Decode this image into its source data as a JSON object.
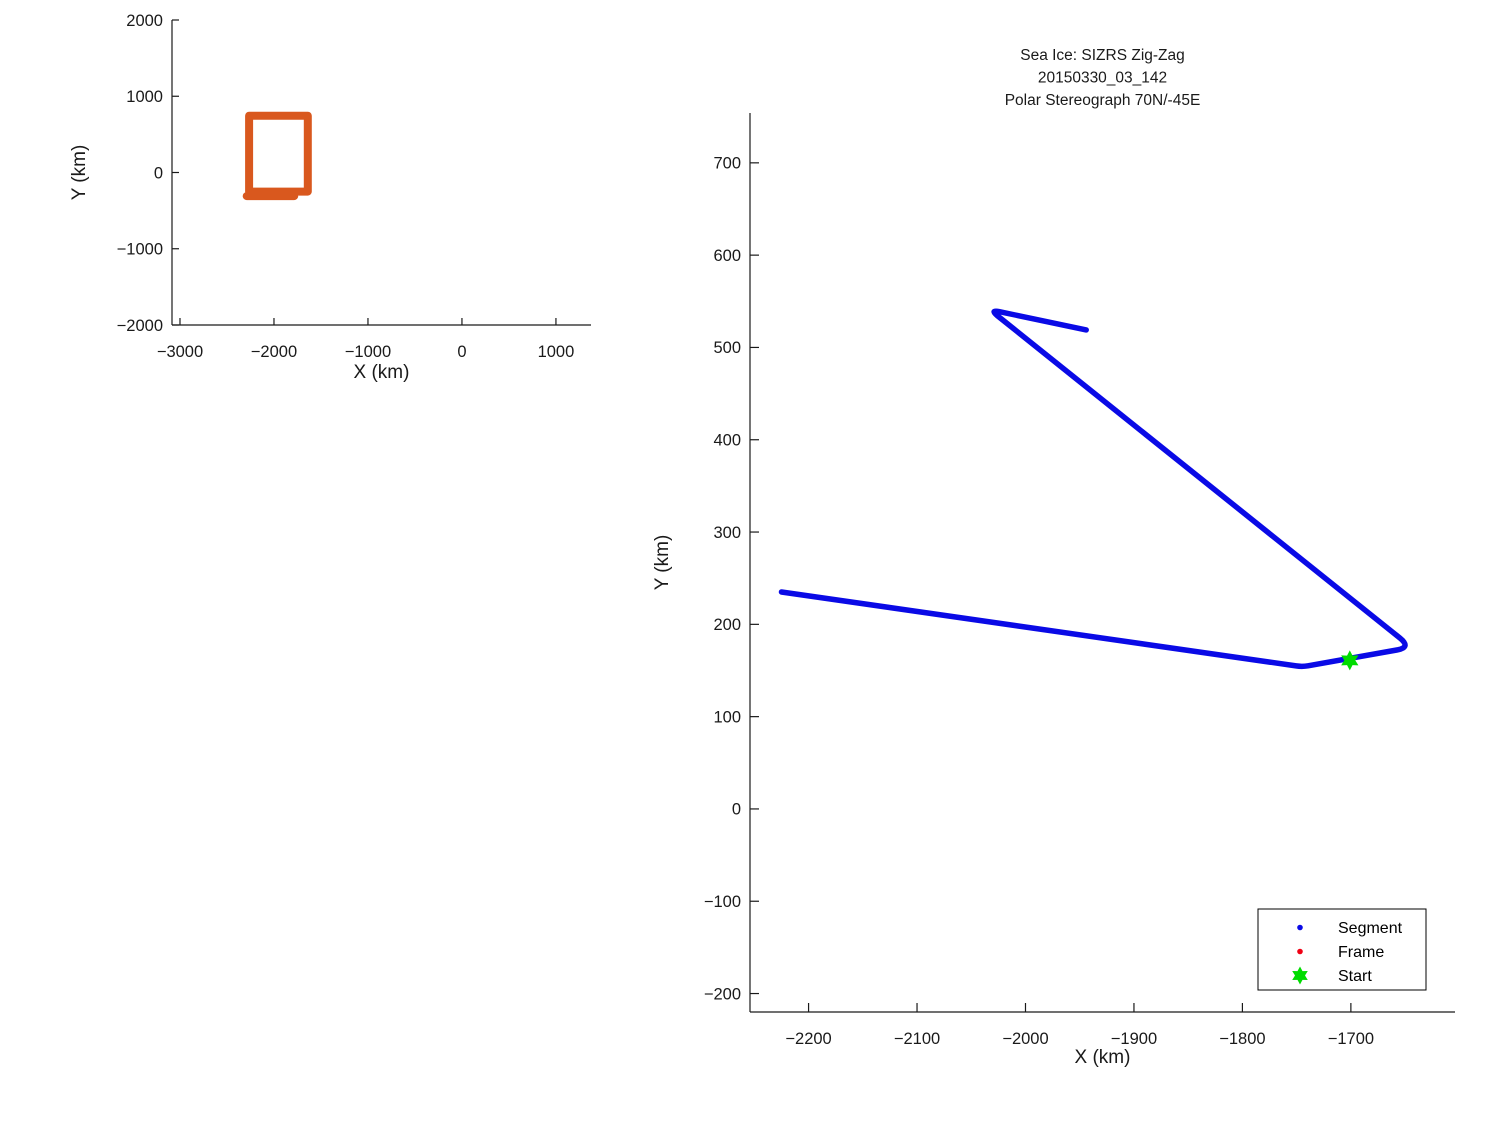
{
  "figure": {
    "background": "#FFFFFF"
  },
  "colors": {
    "track_blue": "#0A0AE6",
    "coverage_orange": "#D9581E",
    "start_green": "#00DC00",
    "frame_red": "#F00014",
    "axis": "#1A1A1A",
    "text": "#1A1A1A"
  },
  "chart_data": [
    {
      "id": "overview",
      "type": "line",
      "title": [],
      "xlabel": "X (km)",
      "ylabel": "Y (km)",
      "xlim": [
        -3085,
        1373
      ],
      "ylim": [
        -2000,
        2000
      ],
      "xticks": [
        -3000,
        -2000,
        -1000,
        0,
        1000
      ],
      "yticks": [
        -2000,
        -1000,
        0,
        1000,
        2000
      ],
      "grid": false,
      "legend": null,
      "series": [
        {
          "name": "coverage-box",
          "color": "#D9581E",
          "width": 8,
          "points": [
            [
              -2265,
              745
            ],
            [
              -1640,
              745
            ],
            [
              -1640,
              -250
            ],
            [
              -2265,
              -250
            ],
            [
              -2265,
              745
            ]
          ]
        },
        {
          "name": "coverage-box-tail",
          "color": "#D9581E",
          "width": 8,
          "points": [
            [
              -2290,
              -310
            ],
            [
              -1785,
              -310
            ]
          ]
        }
      ]
    },
    {
      "id": "zigzag",
      "type": "line",
      "title": [
        "Sea Ice: SIZRS Zig-Zag",
        "20150330_03_142",
        "Polar Stereograph 70N/-45E"
      ],
      "xlabel": "X (km)",
      "ylabel": "Y (km)",
      "xlim": [
        -2254,
        -1604
      ],
      "ylim": [
        -220,
        754
      ],
      "xticks": [
        -2200,
        -2100,
        -2000,
        -1900,
        -1800,
        -1700
      ],
      "yticks": [
        -200,
        -100,
        0,
        100,
        200,
        300,
        400,
        500,
        600,
        700
      ],
      "grid": false,
      "series": [
        {
          "name": "Segment",
          "color": "#0A0AE6",
          "width": 5.5,
          "corner_radii": [
            0,
            6,
            15,
            10,
            0
          ],
          "points": [
            [
              -2225,
              235
            ],
            [
              -1745,
              154
            ],
            [
              -1644,
              175
            ],
            [
              -2033,
              541
            ],
            [
              -1944,
              519
            ]
          ]
        }
      ],
      "start_marker": {
        "x": -1701,
        "y": 161,
        "shape": "hexagram",
        "color": "#00DC00"
      },
      "legend": {
        "position": "bottom-right",
        "entries": [
          {
            "label": "Segment",
            "marker": "dot",
            "color": "#0A0AE6"
          },
          {
            "label": "Frame",
            "marker": "dot",
            "color": "#F00014"
          },
          {
            "label": "Start",
            "marker": "hexagram",
            "color": "#00DC00"
          }
        ]
      }
    }
  ]
}
